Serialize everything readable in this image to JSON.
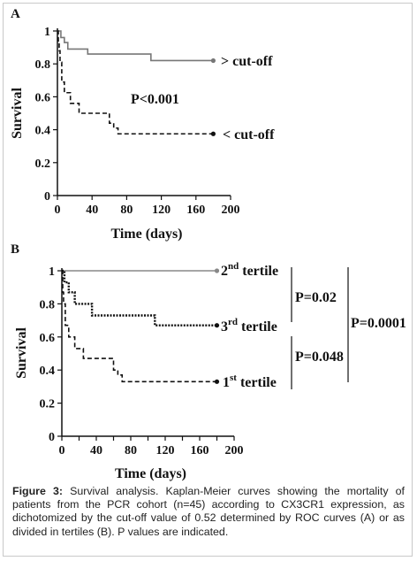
{
  "chart_data": [
    {
      "panel": "A",
      "type": "line",
      "step": true,
      "xlabel": "Time (days)",
      "ylabel": "Survival",
      "xlim": [
        0,
        200
      ],
      "ylim": [
        0,
        1
      ],
      "xticks": [
        "0",
        "40",
        "80",
        "120",
        "160",
        "200"
      ],
      "yticks": [
        "0",
        "0.2",
        "0.4",
        "0.6",
        "0.8",
        "1"
      ],
      "series": [
        {
          "name": "> cut-off",
          "style": "solid",
          "color": "#777777",
          "x": [
            0,
            4,
            8,
            12,
            35,
            108,
            180
          ],
          "y": [
            1,
            0.96,
            0.93,
            0.89,
            0.86,
            0.82,
            0.82
          ]
        },
        {
          "name": "< cut-off",
          "style": "dashed",
          "color": "#111111",
          "x": [
            0,
            1,
            2,
            3,
            5,
            8,
            15,
            25,
            60,
            65,
            70,
            180
          ],
          "y": [
            1,
            0.94,
            0.88,
            0.81,
            0.69,
            0.625,
            0.56,
            0.5,
            0.44,
            0.41,
            0.375,
            0.375
          ]
        }
      ],
      "annotations": [
        "P<0.001"
      ]
    },
    {
      "panel": "B",
      "type": "line",
      "step": true,
      "xlabel": "Time (days)",
      "ylabel": "Survival",
      "xlim": [
        0,
        200
      ],
      "ylim": [
        0,
        1
      ],
      "xticks": [
        "0",
        "20",
        "40",
        "60",
        "80",
        "100",
        "120",
        "140",
        "160",
        "180",
        "200"
      ],
      "yticks": [
        "0",
        "0.2",
        "0.4",
        "0.6",
        "0.8",
        "1"
      ],
      "series": [
        {
          "name": "2nd tertile",
          "style": "solid",
          "color": "#888888",
          "x": [
            0,
            180
          ],
          "y": [
            1,
            1
          ]
        },
        {
          "name": "3rd tertile",
          "style": "dotted",
          "color": "#111111",
          "x": [
            0,
            3,
            8,
            15,
            35,
            108,
            180
          ],
          "y": [
            1,
            0.93,
            0.87,
            0.8,
            0.73,
            0.67,
            0.67
          ]
        },
        {
          "name": "1st tertile",
          "style": "dashed",
          "color": "#111111",
          "x": [
            0,
            1,
            2,
            4,
            8,
            15,
            25,
            60,
            65,
            70,
            180
          ],
          "y": [
            1,
            0.87,
            0.8,
            0.67,
            0.6,
            0.53,
            0.47,
            0.4,
            0.37,
            0.33,
            0.33
          ]
        }
      ],
      "annotations": [
        "P=0.02",
        "P=0.048",
        "P=0.0001"
      ]
    }
  ],
  "labels": {
    "panel_a": "A",
    "panel_b": "B",
    "legend_a_high": "> cut-off",
    "legend_a_low": "< cut-off",
    "p_a": "P<0.001",
    "tert2_num": "2",
    "tert2_sup": "nd",
    "tert3_num": "3",
    "tert3_sup": "rd",
    "tert1_num": "1",
    "tert1_sup": "st",
    "tertile_word": "tertile",
    "p_b1": "P=0.02",
    "p_b2": "P=0.048",
    "p_b3": "P=0.0001"
  },
  "caption": {
    "label": "Figure 3:",
    "text": "Survival analysis. Kaplan-Meier curves showing the mortality of patients from the PCR cohort (n=45) according to CX3CR1 expression, as dichotomized by the cut-off value of 0.52 determined by ROC curves (A) or as divided in tertiles (B). P values are indicated."
  }
}
